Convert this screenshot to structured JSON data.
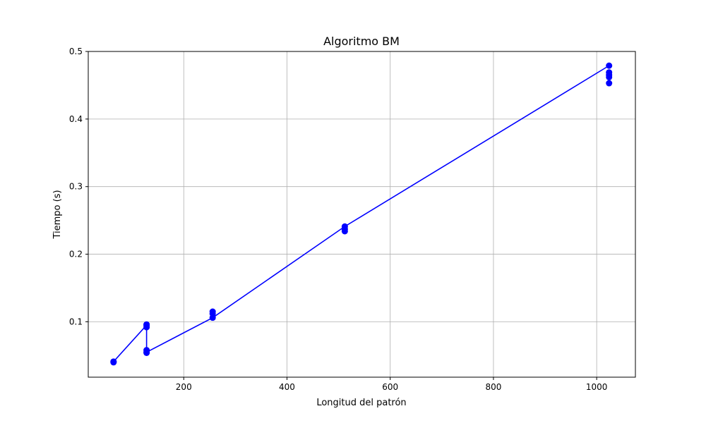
{
  "chart_data": {
    "type": "line",
    "title": "Algoritmo BM",
    "xlabel": "Longitud del patrón",
    "ylabel": "Tiempo (s)",
    "xlim": [
      15,
      1075
    ],
    "ylim": [
      0.018,
      0.5
    ],
    "xticks": [
      200,
      400,
      600,
      800,
      1000
    ],
    "yticks": [
      0.1,
      0.2,
      0.3,
      0.4,
      0.5
    ],
    "grid": true,
    "series": [
      {
        "color": "#0000ff",
        "marker": "circle",
        "x": [
          64,
          64,
          64,
          128,
          128,
          128,
          128,
          128,
          128,
          256,
          256,
          256,
          512,
          512,
          512,
          1024,
          1024,
          1024,
          1024,
          1024
        ],
        "y": [
          0.041,
          0.04,
          0.041,
          0.095,
          0.092,
          0.096,
          0.058,
          0.054,
          0.055,
          0.115,
          0.112,
          0.106,
          0.241,
          0.237,
          0.234,
          0.479,
          0.469,
          0.465,
          0.462,
          0.453
        ],
        "line_path": [
          [
            64,
            0.041
          ],
          [
            128,
            0.095
          ],
          [
            128,
            0.055
          ],
          [
            256,
            0.106
          ],
          [
            512,
            0.241
          ],
          [
            1024,
            0.479
          ]
        ]
      }
    ]
  }
}
